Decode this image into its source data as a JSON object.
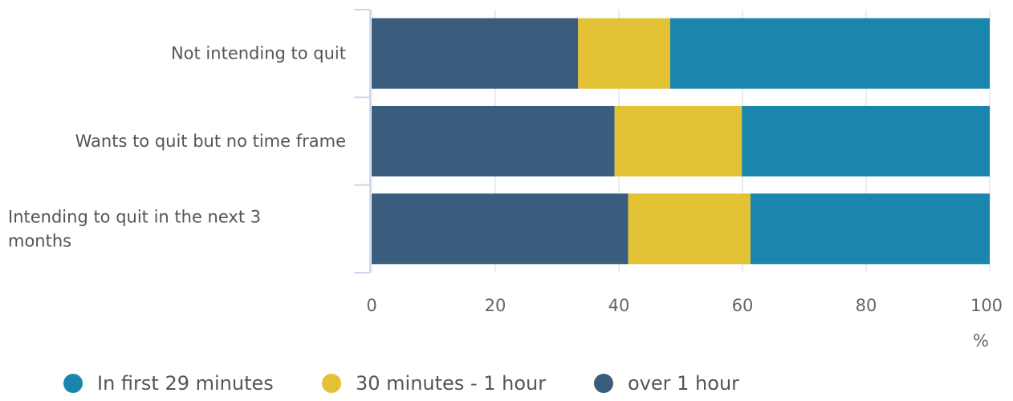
{
  "chart_data": {
    "type": "bar",
    "orientation": "horizontal",
    "stacked": true,
    "categories": [
      "Not intending to quit",
      "Wants to quit but no time frame",
      "Intending to quit in the next 3 months"
    ],
    "series": [
      {
        "name": "over 1 hour",
        "color": "#3a5d7e",
        "values": [
          33.4,
          39.3,
          41.5
        ]
      },
      {
        "name": "30 minutes - 1 hour",
        "color": "#e3c235",
        "values": [
          14.9,
          20.6,
          19.8
        ]
      },
      {
        "name": "In first 29 minutes",
        "color": "#1b86ad",
        "values": [
          51.7,
          40.1,
          38.7
        ]
      }
    ],
    "xlim": [
      0,
      100
    ],
    "xticks": [
      "0",
      "20",
      "40",
      "60",
      "80",
      "100"
    ],
    "xlabel": "%",
    "grid": true,
    "legend_position": "bottom-left",
    "legend_order": [
      "In first 29 minutes",
      "30 minutes - 1 hour",
      "over 1 hour"
    ]
  }
}
